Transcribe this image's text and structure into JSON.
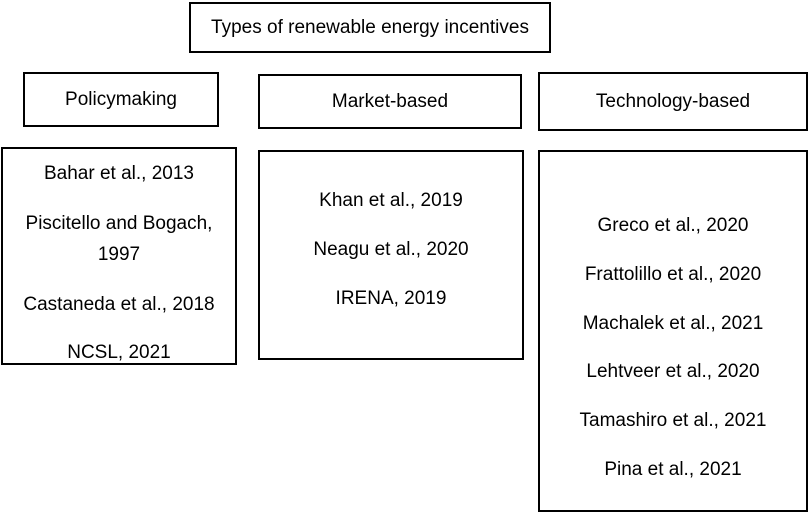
{
  "title": "Types of renewable energy incentives",
  "categories": [
    {
      "label": "Policymaking",
      "references": [
        "Bahar et al., 2013",
        "Piscitello and Bogach, 1997",
        "Castaneda et al., 2018",
        "NCSL, 2021"
      ]
    },
    {
      "label": "Market-based",
      "references": [
        "Khan et al., 2019",
        "Neagu et al., 2020",
        "IRENA, 2019"
      ]
    },
    {
      "label": "Technology-based",
      "references": [
        "Greco et al., 2020",
        "Frattolillo et al., 2020",
        "Machalek et al., 2021",
        "Lehtveer et al., 2020",
        "Tamashiro et al., 2021",
        "Pina et al., 2021"
      ]
    }
  ]
}
